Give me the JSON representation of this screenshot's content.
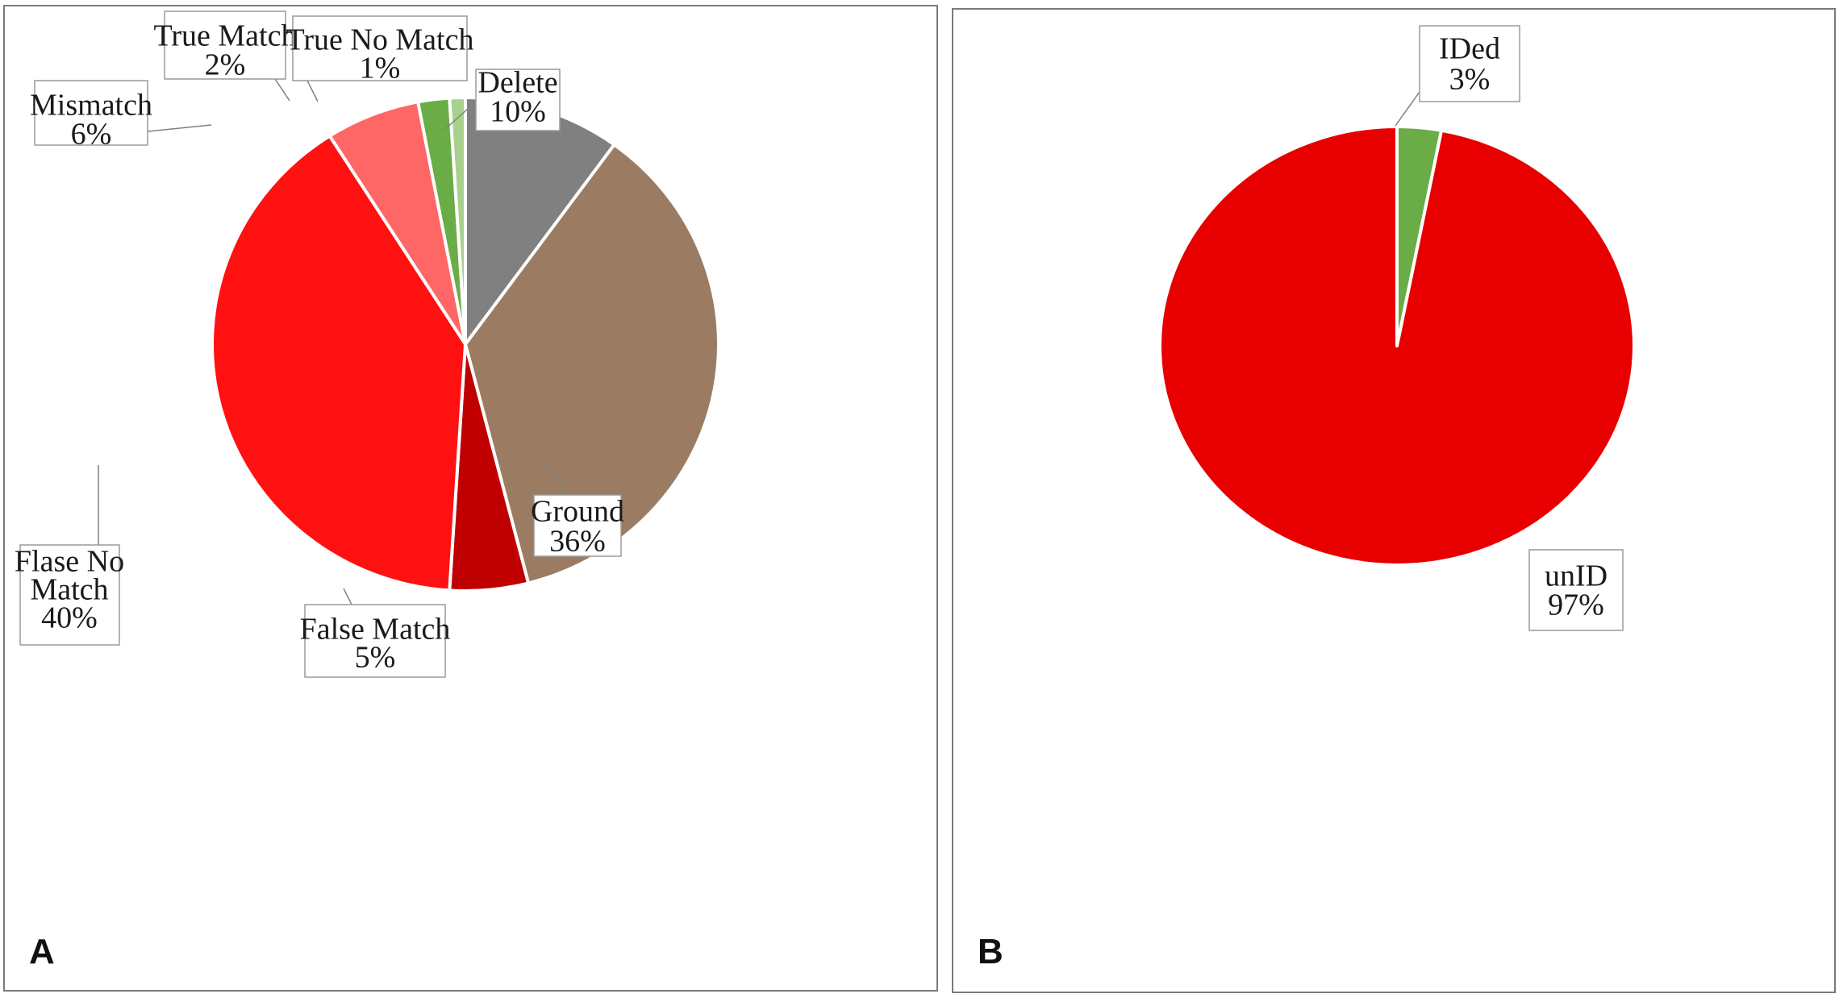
{
  "panels": {
    "a_letter": "A",
    "b_letter": "B"
  },
  "chart_data": [
    {
      "type": "pie",
      "panel": "A",
      "slices": [
        {
          "label": "Delete",
          "value": 10,
          "display": "10%",
          "color": "#808080"
        },
        {
          "label": "Ground",
          "value": 36,
          "display": "36%",
          "color": "#9b7c62"
        },
        {
          "label": "False Match",
          "value": 5,
          "display": "5%",
          "color": "#c00000"
        },
        {
          "label": "Flase No Match",
          "value": 40,
          "display": "40%",
          "color": "#ff1111"
        },
        {
          "label": "Mismatch",
          "value": 6,
          "display": "6%",
          "color": "#ff6666"
        },
        {
          "label": "True Match",
          "value": 2,
          "display": "2%",
          "color": "#6aac45"
        },
        {
          "label": "True No Match",
          "value": 1,
          "display": "1%",
          "color": "#a9d18e"
        }
      ]
    },
    {
      "type": "pie",
      "panel": "B",
      "slices": [
        {
          "label": "IDed",
          "value": 3,
          "display": "3%",
          "color": "#6aac45"
        },
        {
          "label": "unID",
          "value": 97,
          "display": "97%",
          "color": "#e80000"
        }
      ]
    }
  ]
}
